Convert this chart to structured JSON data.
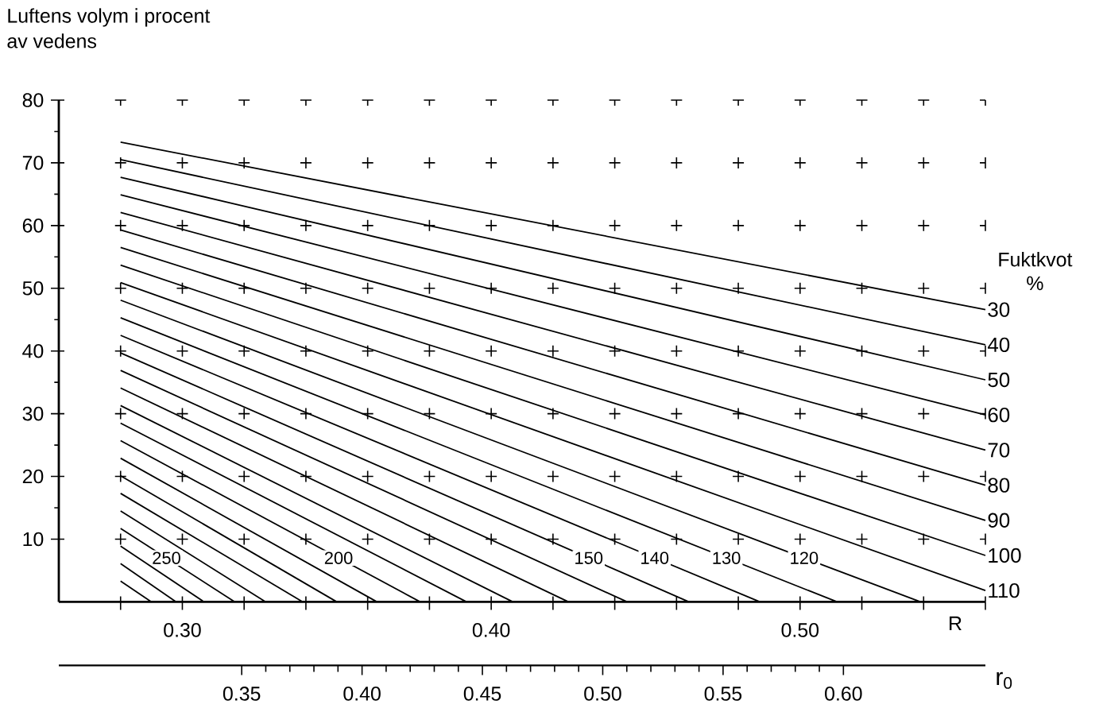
{
  "chart_data": {
    "type": "line",
    "ylabel": "Luftens volym i procent av vedens",
    "xlabel": "R",
    "x2label": "r$_{0}$",
    "legend_title": "Fuktkvot %",
    "color": "#000000",
    "grid": true,
    "xlim": [
      0.26,
      0.56
    ],
    "ylim": [
      0,
      80
    ],
    "xticks": [
      {
        "value": 0.28,
        "label": null
      },
      {
        "value": 0.3,
        "label": "0.30"
      },
      {
        "value": 0.32,
        "label": null
      },
      {
        "value": 0.34,
        "label": null
      },
      {
        "value": 0.36,
        "label": null
      },
      {
        "value": 0.38,
        "label": null
      },
      {
        "value": 0.4,
        "label": "0.40"
      },
      {
        "value": 0.42,
        "label": null
      },
      {
        "value": 0.44,
        "label": null
      },
      {
        "value": 0.46,
        "label": null
      },
      {
        "value": 0.48,
        "label": null
      },
      {
        "value": 0.5,
        "label": "0.50"
      },
      {
        "value": 0.52,
        "label": null
      },
      {
        "value": 0.54,
        "label": null
      },
      {
        "value": 0.56,
        "label": null
      }
    ],
    "yticks": [
      10,
      20,
      30,
      40,
      50,
      60,
      70,
      80
    ],
    "x2lim": [
      0.274,
      0.659
    ],
    "x2ticks": [
      {
        "value": 0.35,
        "label": "0.35"
      },
      {
        "value": 0.4,
        "label": "0.40"
      },
      {
        "value": 0.45,
        "label": "0.45"
      },
      {
        "value": 0.5,
        "label": "0.50"
      },
      {
        "value": 0.55,
        "label": "0.55"
      },
      {
        "value": 0.6,
        "label": "0.60"
      }
    ],
    "series": [
      {
        "name": "30",
        "x": [
          0.28,
          0.56
        ],
        "values": [
          73.3,
          46.6
        ]
      },
      {
        "name": "40",
        "x": [
          0.28,
          0.56
        ],
        "values": [
          70.5,
          41.0
        ]
      },
      {
        "name": "50",
        "x": [
          0.28,
          0.56
        ],
        "values": [
          67.7,
          35.4
        ]
      },
      {
        "name": "60",
        "x": [
          0.28,
          0.56
        ],
        "values": [
          64.9,
          29.8
        ]
      },
      {
        "name": "70",
        "x": [
          0.28,
          0.56
        ],
        "values": [
          62.1,
          24.2
        ]
      },
      {
        "name": "80",
        "x": [
          0.28,
          0.56
        ],
        "values": [
          59.3,
          18.6
        ]
      },
      {
        "name": "90",
        "x": [
          0.28,
          0.56
        ],
        "values": [
          56.5,
          13.0
        ]
      },
      {
        "name": "100",
        "x": [
          0.28,
          0.56
        ],
        "values": [
          53.7,
          7.4
        ]
      },
      {
        "name": "110",
        "x": [
          0.28,
          0.56
        ],
        "values": [
          50.9,
          1.8
        ]
      },
      {
        "name": "120",
        "x": [
          0.28,
          0.539
        ],
        "values": [
          48.1,
          0
        ]
      },
      {
        "name": "130",
        "x": [
          0.28,
          0.512
        ],
        "values": [
          45.3,
          0
        ]
      },
      {
        "name": "140",
        "x": [
          0.28,
          0.487
        ],
        "values": [
          42.5,
          0
        ]
      },
      {
        "name": "150",
        "x": [
          0.28,
          0.464
        ],
        "values": [
          39.7,
          0
        ]
      },
      {
        "x": [
          0.28,
          0.444
        ],
        "values": [
          36.9,
          0
        ]
      },
      {
        "x": [
          0.28,
          0.425
        ],
        "values": [
          34.1,
          0
        ]
      },
      {
        "x": [
          0.28,
          0.407
        ],
        "values": [
          31.3,
          0
        ]
      },
      {
        "x": [
          0.28,
          0.392
        ],
        "values": [
          28.5,
          0
        ]
      },
      {
        "name": "200",
        "x": [
          0.28,
          0.377
        ],
        "values": [
          25.7,
          0
        ]
      },
      {
        "x": [
          0.28,
          0.363
        ],
        "values": [
          22.9,
          0
        ]
      },
      {
        "x": [
          0.28,
          0.35
        ],
        "values": [
          20.1,
          0
        ]
      },
      {
        "x": [
          0.28,
          0.339
        ],
        "values": [
          17.3,
          0
        ]
      },
      {
        "x": [
          0.28,
          0.327
        ],
        "values": [
          14.5,
          0
        ]
      },
      {
        "name": "250",
        "x": [
          0.28,
          0.317
        ],
        "values": [
          11.7,
          0
        ]
      },
      {
        "x": [
          0.28,
          0.307
        ],
        "values": [
          8.9,
          0
        ]
      },
      {
        "x": [
          0.28,
          0.298
        ],
        "values": [
          6.1,
          0
        ]
      },
      {
        "x": [
          0.28,
          0.29
        ],
        "values": [
          3.3,
          0
        ]
      }
    ]
  }
}
